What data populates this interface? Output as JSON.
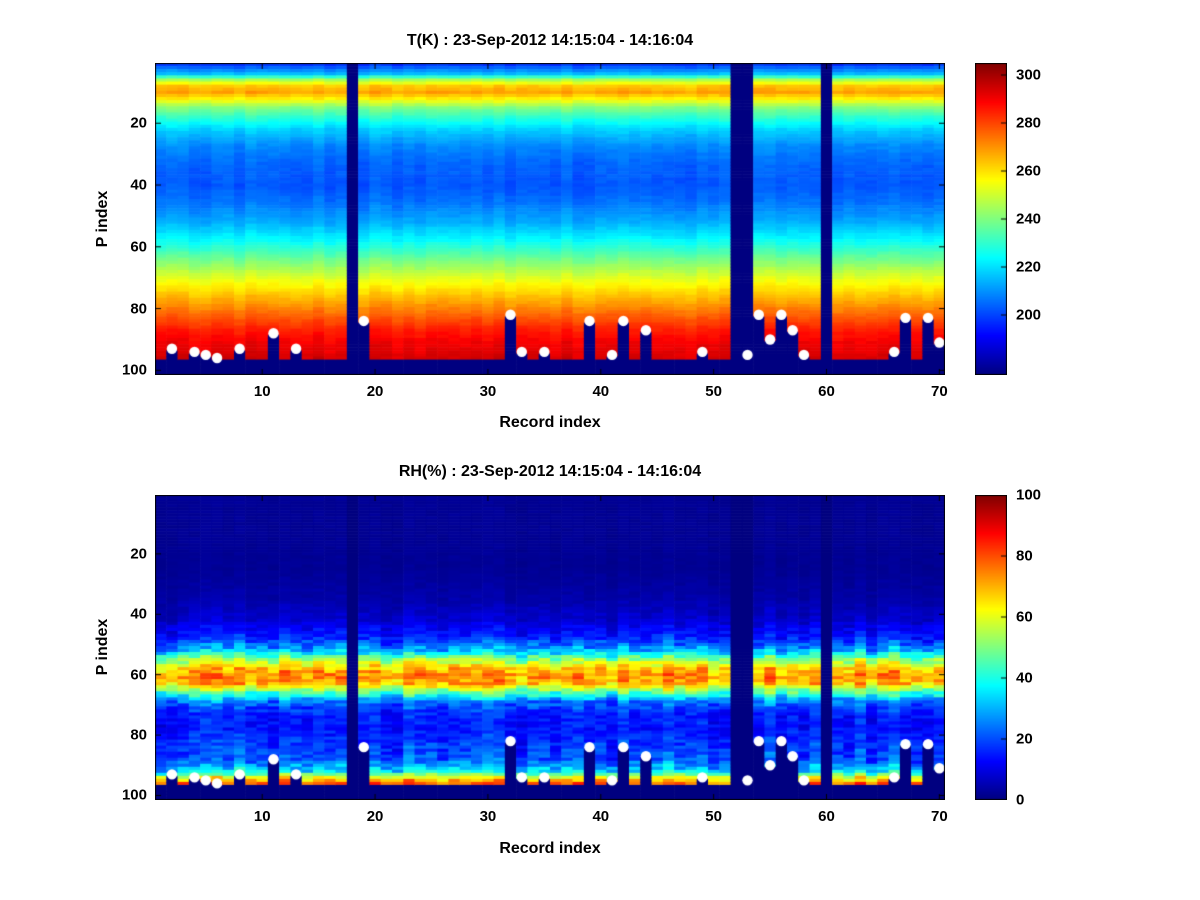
{
  "figure": {
    "background": "#ffffff",
    "text_color": "#000000"
  },
  "chart_data": [
    {
      "type": "heatmap",
      "title": "T(K) : 23-Sep-2012 14:15:04 - 14:16:04",
      "xlabel": "Record index",
      "ylabel": "P index",
      "x_ticks": [
        10,
        20,
        30,
        40,
        50,
        60,
        70
      ],
      "y_ticks": [
        20,
        40,
        60,
        80,
        100
      ],
      "x_range": [
        1,
        70
      ],
      "y_range": [
        1,
        101
      ],
      "y_axis_reversed": true,
      "n_records": 70,
      "n_levels": 101,
      "colormap": "jet",
      "clim": [
        175,
        305
      ],
      "colorbar_ticks": [
        200,
        220,
        240,
        260,
        280,
        300
      ],
      "missing_records": [
        18,
        52,
        53,
        60
      ],
      "default_surface_level": 96,
      "surface_dots": [
        [
          2,
          93
        ],
        [
          4,
          94
        ],
        [
          5,
          95
        ],
        [
          6,
          96
        ],
        [
          8,
          93
        ],
        [
          11,
          88
        ],
        [
          13,
          93
        ],
        [
          19,
          84
        ],
        [
          32,
          82
        ],
        [
          33,
          94
        ],
        [
          35,
          94
        ],
        [
          39,
          84
        ],
        [
          41,
          95
        ],
        [
          42,
          84
        ],
        [
          44,
          87
        ],
        [
          49,
          94
        ],
        [
          53,
          95
        ],
        [
          54,
          82
        ],
        [
          55,
          90
        ],
        [
          56,
          82
        ],
        [
          57,
          87
        ],
        [
          58,
          95
        ],
        [
          66,
          94
        ],
        [
          67,
          83
        ],
        [
          69,
          83
        ],
        [
          70,
          91
        ]
      ],
      "dot_color": "#ffffff",
      "profile": [
        [
          1,
          198
        ],
        [
          4,
          215
        ],
        [
          6,
          245
        ],
        [
          8,
          263
        ],
        [
          10,
          268
        ],
        [
          12,
          258
        ],
        [
          15,
          240
        ],
        [
          18,
          230
        ],
        [
          22,
          218
        ],
        [
          27,
          209
        ],
        [
          33,
          204
        ],
        [
          40,
          202
        ],
        [
          46,
          206
        ],
        [
          52,
          213
        ],
        [
          58,
          224
        ],
        [
          64,
          238
        ],
        [
          70,
          252
        ],
        [
          76,
          264
        ],
        [
          82,
          276
        ],
        [
          87,
          285
        ],
        [
          91,
          290
        ],
        [
          96,
          294
        ]
      ],
      "record_noise": 2,
      "cell_noise": 1.3,
      "noise_ref": 0,
      "seed": 42
    },
    {
      "type": "heatmap",
      "title": "RH(%) : 23-Sep-2012 14:15:04 - 14:16:04",
      "xlabel": "Record index",
      "ylabel": "P index",
      "x_ticks": [
        10,
        20,
        30,
        40,
        50,
        60,
        70
      ],
      "y_ticks": [
        20,
        40,
        60,
        80,
        100
      ],
      "x_range": [
        1,
        70
      ],
      "y_range": [
        1,
        101
      ],
      "y_axis_reversed": true,
      "n_records": 70,
      "n_levels": 101,
      "colormap": "jet",
      "clim": [
        0,
        100
      ],
      "colorbar_ticks": [
        0,
        20,
        40,
        60,
        80,
        100
      ],
      "missing_records": [
        18,
        52,
        53,
        60
      ],
      "default_surface_level": 96,
      "surface_dots": [
        [
          2,
          93
        ],
        [
          4,
          94
        ],
        [
          5,
          95
        ],
        [
          6,
          96
        ],
        [
          8,
          93
        ],
        [
          11,
          88
        ],
        [
          13,
          93
        ],
        [
          19,
          84
        ],
        [
          32,
          82
        ],
        [
          33,
          94
        ],
        [
          35,
          94
        ],
        [
          39,
          84
        ],
        [
          41,
          95
        ],
        [
          42,
          84
        ],
        [
          44,
          87
        ],
        [
          49,
          94
        ],
        [
          53,
          95
        ],
        [
          54,
          82
        ],
        [
          55,
          90
        ],
        [
          56,
          82
        ],
        [
          57,
          87
        ],
        [
          58,
          95
        ],
        [
          66,
          94
        ],
        [
          67,
          83
        ],
        [
          69,
          83
        ],
        [
          70,
          91
        ]
      ],
      "dot_color": "#ffffff",
      "profile": [
        [
          1,
          2
        ],
        [
          25,
          2
        ],
        [
          35,
          4
        ],
        [
          42,
          8
        ],
        [
          48,
          16
        ],
        [
          52,
          30
        ],
        [
          55,
          52
        ],
        [
          58,
          68
        ],
        [
          60,
          74
        ],
        [
          63,
          70
        ],
        [
          66,
          45
        ],
        [
          69,
          24
        ],
        [
          73,
          15
        ],
        [
          78,
          14
        ],
        [
          83,
          18
        ],
        [
          88,
          20
        ],
        [
          92,
          35
        ],
        [
          94,
          60
        ],
        [
          96,
          78
        ]
      ],
      "record_noise": 6,
      "cell_noise": 7,
      "noise_ref": 25,
      "seed": 7
    }
  ]
}
